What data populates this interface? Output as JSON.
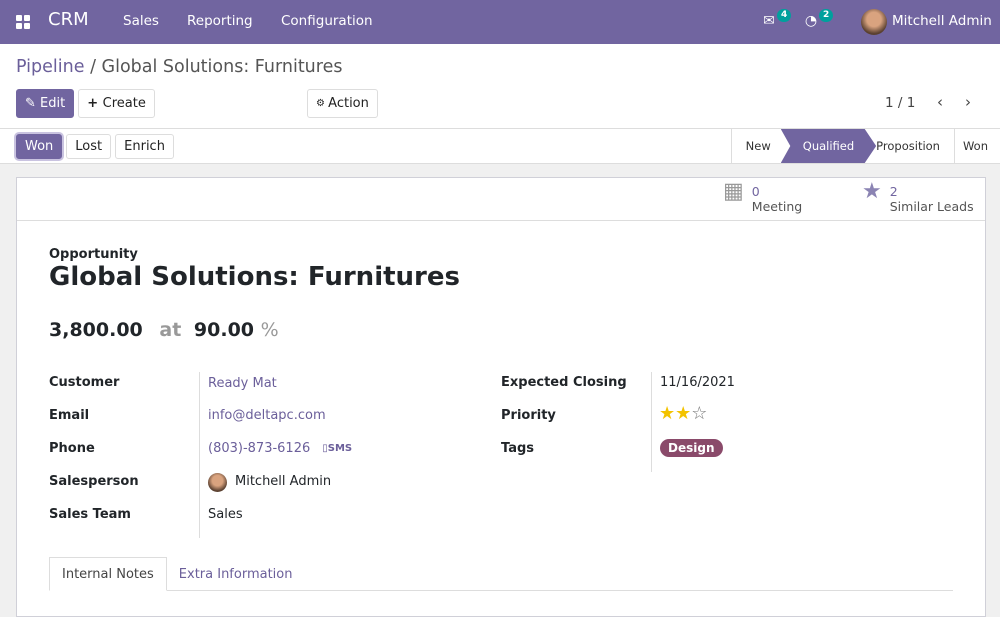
{
  "nav": {
    "app": "CRM",
    "menu": [
      "Sales",
      "Reporting",
      "Configuration"
    ],
    "messages_count": "4",
    "activities_count": "2",
    "user": "Mitchell Admin"
  },
  "breadcrumb": {
    "parent": "Pipeline",
    "separator": " / ",
    "current": "Global Solutions: Furnitures"
  },
  "toolbar": {
    "edit": "Edit",
    "create": "Create",
    "action": "Action",
    "pager": "1 / 1"
  },
  "status": {
    "buttons": [
      "Won",
      "Lost",
      "Enrich"
    ],
    "stages": [
      "New",
      "Qualified",
      "Proposition",
      "Won"
    ],
    "active_stage": "Qualified"
  },
  "smart": {
    "meeting_count": "0",
    "meeting_label": "Meeting",
    "similar_count": "2",
    "similar_label": "Similar Leads"
  },
  "record": {
    "type": "Opportunity",
    "name": "Global Solutions: Furnitures",
    "revenue": "3,800.00",
    "at": "at",
    "probability": "90.00",
    "percent": "%"
  },
  "fields_left": [
    {
      "label": "Customer",
      "value": "Ready Mat"
    },
    {
      "label": "Email",
      "value": "info@deltapc.com"
    },
    {
      "label": "Phone",
      "value": "(803)-873-6126",
      "action": "SMS"
    },
    {
      "label": "Salesperson",
      "value": "Mitchell Admin"
    },
    {
      "label": "Sales Team",
      "value": "Sales"
    }
  ],
  "fields_right": [
    {
      "label": "Expected Closing",
      "value": "11/16/2021"
    },
    {
      "label": "Priority",
      "stars": 2,
      "max": 3
    },
    {
      "label": "Tags",
      "value": "Design"
    }
  ],
  "colors": {
    "brand": "#7165a0",
    "tag": "#8a4a6a",
    "star": "#f3c300"
  },
  "tabs": [
    "Internal Notes",
    "Extra Information"
  ]
}
